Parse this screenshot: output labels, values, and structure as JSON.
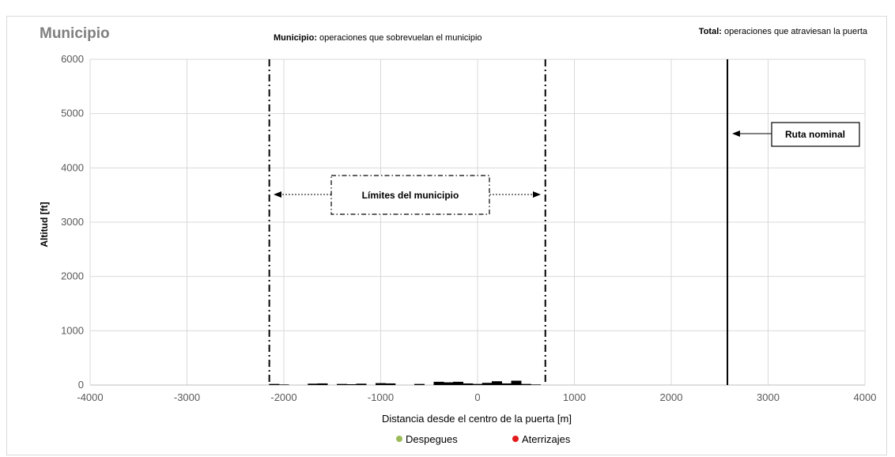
{
  "chart_data": {
    "type": "bar",
    "title": "Municipio",
    "subtitle_bold": "Municipio:",
    "subtitle_rest": " operaciones que sobrevuelan el municipio",
    "note_bold": "Total:",
    "note_rest": " operaciones que atraviesan la puerta",
    "xlabel": "Distancia desde el centro de la puerta [m]",
    "ylabel": "Altitud [ft]",
    "xlim": [
      -4000,
      4000
    ],
    "ylim": [
      0,
      6000
    ],
    "xticks": [
      -4000,
      -3000,
      -2000,
      -1000,
      0,
      1000,
      2000,
      3000,
      4000
    ],
    "yticks": [
      0,
      1000,
      2000,
      3000,
      4000,
      5000,
      6000
    ],
    "grid": true,
    "municipality_limits": [
      -2150,
      700
    ],
    "nominal_route_x": 2580,
    "annotations": {
      "limits_label": "Límites del municipio",
      "route_label": "Ruta nominal"
    },
    "bars_x": [
      -2100,
      -2000,
      -1700,
      -1600,
      -1400,
      -1300,
      -1200,
      -1000,
      -900,
      -600,
      -400,
      -300,
      -200,
      -100,
      0,
      100,
      200,
      300,
      400,
      500,
      600
    ],
    "bars_y": [
      20,
      10,
      25,
      30,
      20,
      15,
      25,
      35,
      30,
      20,
      60,
      50,
      60,
      30,
      20,
      40,
      70,
      30,
      80,
      20,
      10
    ],
    "legend": [
      {
        "name": "Despegues",
        "color": "#9bbb59"
      },
      {
        "name": "Aterrizajes",
        "color": "#e31a1c"
      }
    ],
    "legend_position": "bottom"
  }
}
